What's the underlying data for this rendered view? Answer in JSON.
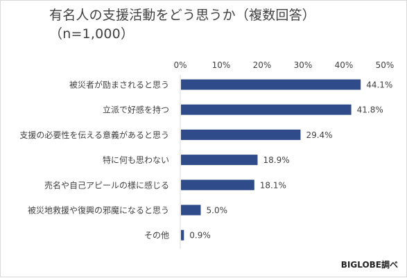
{
  "chart_data": {
    "type": "bar",
    "orientation": "horizontal",
    "title": "有名人の支援活動をどう思うか（複数回答）\n（n=1,000）",
    "categories": [
      "被災者が励まされると思う",
      "立派で好感を持つ",
      "支援の必要性を伝える意義があると思う",
      "特に何も思わない",
      "売名や自己アピールの様に感じる",
      "被災地救援や復興の邪魔になると思う",
      "その他"
    ],
    "values": [
      44.1,
      41.8,
      29.4,
      18.9,
      18.1,
      5.0,
      0.9
    ],
    "value_labels": [
      "44.1%",
      "41.8%",
      "29.4%",
      "18.9%",
      "18.1%",
      "5.0%",
      "0.9%"
    ],
    "xlim": [
      0,
      50
    ],
    "x_ticks": [
      "0%",
      "10%",
      "20%",
      "30%",
      "40%",
      "50%"
    ],
    "x_axis_position": "top",
    "grid": false,
    "bar_color": "#2f4b8a",
    "source": "BIGLOBE調べ"
  }
}
